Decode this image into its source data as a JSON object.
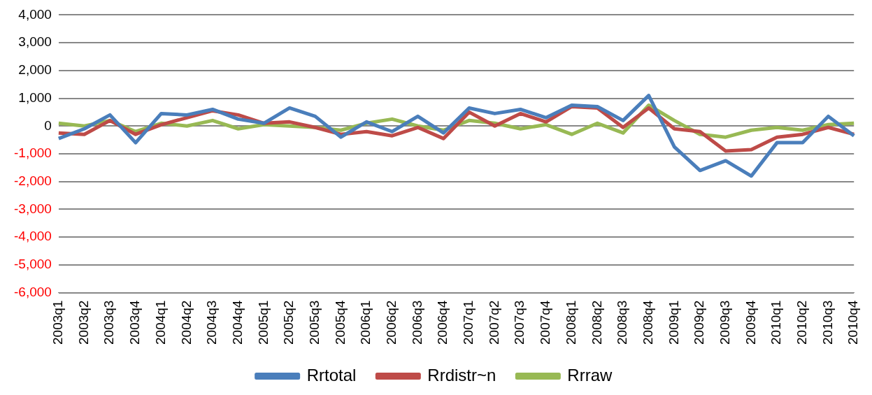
{
  "chart_data": {
    "type": "line",
    "categories": [
      "2003q1",
      "2003q2",
      "2003q3",
      "2003q4",
      "2004q1",
      "2004q2",
      "2004q3",
      "2004q4",
      "2005q1",
      "2005q2",
      "2005q3",
      "2005q4",
      "2006q1",
      "2006q2",
      "2006q3",
      "2006q4",
      "2007q1",
      "2007q2",
      "2007q3",
      "2007q4",
      "2008q1",
      "2008q2",
      "2008q3",
      "2008q4",
      "2009q1",
      "2009q2",
      "2009q3",
      "2009q4",
      "2010q1",
      "2010q2",
      "2010q3",
      "2010q4"
    ],
    "series": [
      {
        "name": "Rrtotal",
        "color": "#4a7ebb",
        "values": [
          -450,
          -100,
          400,
          -600,
          450,
          400,
          600,
          250,
          100,
          650,
          350,
          -400,
          150,
          -200,
          350,
          -250,
          650,
          450,
          600,
          300,
          750,
          700,
          200,
          1100,
          -750,
          -1600,
          -1250,
          -1800,
          -600,
          -600,
          350,
          -350
        ]
      },
      {
        "name": "Rrdistr~n",
        "color": "#be4b48",
        "values": [
          -250,
          -300,
          200,
          -300,
          50,
          300,
          550,
          400,
          100,
          150,
          -50,
          -300,
          -200,
          -350,
          -50,
          -450,
          500,
          0,
          450,
          150,
          700,
          650,
          -50,
          650,
          -100,
          -200,
          -900,
          -850,
          -400,
          -300,
          -50,
          -300
        ]
      },
      {
        "name": "Rrraw",
        "color": "#98b954",
        "values": [
          100,
          0,
          200,
          -200,
          100,
          0,
          200,
          -100,
          50,
          0,
          -50,
          -150,
          100,
          250,
          0,
          -150,
          200,
          100,
          -100,
          50,
          -300,
          100,
          -250,
          750,
          200,
          -300,
          -400,
          -150,
          -50,
          -150,
          50,
          100
        ]
      }
    ],
    "ylim": [
      -6000,
      4000
    ],
    "yticks": [
      {
        "value": -6000,
        "label": "-6,000"
      },
      {
        "value": -5000,
        "label": "-5,000"
      },
      {
        "value": -4000,
        "label": "-4,000"
      },
      {
        "value": -3000,
        "label": "-3,000"
      },
      {
        "value": -2000,
        "label": "-2,000"
      },
      {
        "value": -1000,
        "label": "-1,000"
      },
      0,
      {
        "value": 1000,
        "label": "1,000"
      },
      {
        "value": 2000,
        "label": "2,000"
      },
      {
        "value": 3000,
        "label": "3,000"
      },
      {
        "value": 4000,
        "label": "4,000"
      }
    ],
    "grid": "y",
    "legend": "bottom",
    "marker": "none",
    "line_style": "solid"
  }
}
